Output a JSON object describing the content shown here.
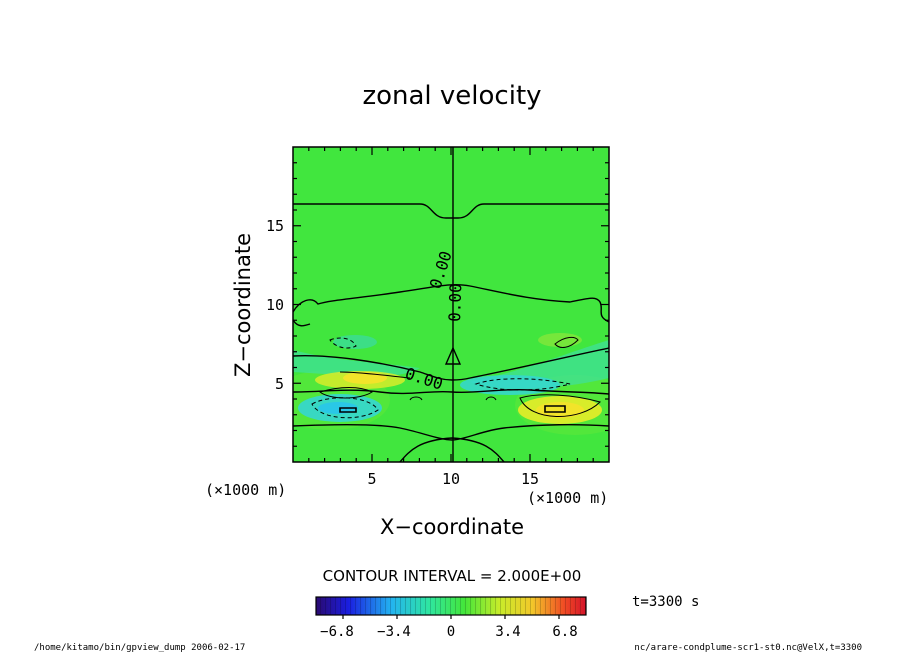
{
  "chart_data": {
    "type": "heatmap",
    "title": "zonal velocity",
    "xlabel": "X−coordinate",
    "ylabel": "Z−coordinate",
    "x_unit": "(×1000 m)",
    "y_unit": "(×1000 m)",
    "xlim": [
      0,
      20
    ],
    "ylim": [
      0,
      20
    ],
    "x_ticks": [
      "5",
      "10",
      "15"
    ],
    "y_ticks": [
      "5",
      "10",
      "15"
    ],
    "contour_interval_text": "CONTOUR INTERVAL = 2.000E+00",
    "contour_labels": [
      "0.00",
      "0.00",
      "0.00"
    ],
    "colorbar": {
      "min": -8.5,
      "max": 8.5,
      "tick_labels": [
        "−6.8",
        "−3.4",
        "0",
        "3.4",
        "6.8"
      ]
    },
    "time_label": "t=3300 s",
    "colors": {
      "background": "#41e63e",
      "positive": "#f2e42a",
      "negative": "#35d6d2",
      "contour": "#000000"
    }
  },
  "footer": {
    "left": "/home/kitamo/bin/gpview_dump  2006-02-17",
    "right": "nc/arare-condplume-scr1-st0.nc@VelX,t=3300"
  }
}
